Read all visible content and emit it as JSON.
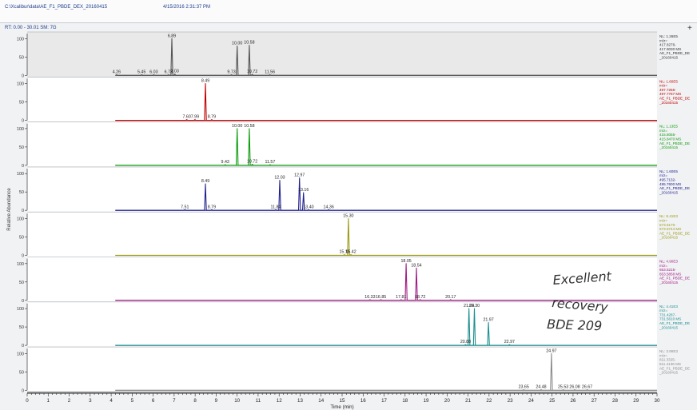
{
  "header": {
    "path": "C:\\Xcalibur\\data\\AE_F1_PBDE_DEX_20160415",
    "stamp": "4/15/2016 2:31:37 PM"
  },
  "rt_label": "RT: 0.00 - 30.01  SM: 7G",
  "plus_icon": "plus-icon",
  "annotation": [
    "Excellent",
    "recovery",
    "BDE 209"
  ],
  "chart_data": {
    "type": "line",
    "x_range": [
      0,
      30
    ],
    "x_ticks": [
      0,
      1,
      2,
      3,
      4,
      5,
      6,
      7,
      8,
      9,
      10,
      11,
      12,
      13,
      14,
      15,
      16,
      17,
      18,
      19,
      20,
      21,
      22,
      23,
      24,
      25,
      26,
      27,
      28,
      29,
      30
    ],
    "x_tick_labels": [
      "0",
      "1",
      "2",
      "3",
      "4",
      "5",
      "6",
      "7",
      "8",
      "9",
      "10",
      "11",
      "12",
      "13",
      "14",
      "15",
      "16",
      "17",
      "18",
      "19",
      "20",
      "21",
      "22",
      "23",
      "24",
      "25",
      "26",
      "27",
      "28",
      "29",
      "30"
    ],
    "xlabel": "Time (min)",
    "ylabel": "Relative Abundance",
    "y_ticks": [
      0,
      50,
      100
    ],
    "grid": false,
    "panels": [
      {
        "color": "#555555",
        "shaded": true,
        "x_start": 4.2,
        "peaks": [
          {
            "x": 4.26,
            "y": 2,
            "w": 0.05,
            "label": "4.26"
          },
          {
            "x": 5.45,
            "y": 2,
            "w": 0.05,
            "label": "5.45"
          },
          {
            "x": 6.03,
            "y": 2,
            "w": 0.05,
            "label": "6.03"
          },
          {
            "x": 6.73,
            "y": 2,
            "w": 0.05,
            "label": "6.73"
          },
          {
            "x": 6.89,
            "y": 100,
            "w": 0.045,
            "label": "6.89"
          },
          {
            "x": 7.03,
            "y": 4,
            "w": 0.04,
            "label": "7.03"
          },
          {
            "x": 9.73,
            "y": 2,
            "w": 0.05,
            "label": "9.73"
          },
          {
            "x": 10.0,
            "y": 80,
            "w": 0.045,
            "label": "10.00"
          },
          {
            "x": 10.58,
            "y": 82,
            "w": 0.045,
            "label": "10.58"
          },
          {
            "x": 10.72,
            "y": 3,
            "w": 0.05,
            "label": "10.72"
          },
          {
            "x": 11.56,
            "y": 2,
            "w": 0.05,
            "label": "11.56"
          }
        ],
        "side": [
          "NL: 1.26E5",
          "m/z=",
          "417.8276-",
          "417.9030  MS",
          "AE_F1_PBDE_DE",
          "_20160415"
        ]
      },
      {
        "color": "#c00000",
        "shaded": false,
        "x_start": 4.2,
        "peaks": [
          {
            "x": 7.6,
            "y": 2,
            "w": 0.05,
            "label": "7.60"
          },
          {
            "x": 7.99,
            "y": 2,
            "w": 0.05,
            "label": "7.99"
          },
          {
            "x": 8.49,
            "y": 100,
            "w": 0.045,
            "label": "8.49"
          },
          {
            "x": 8.79,
            "y": 2,
            "w": 0.05,
            "label": "8.79"
          }
        ],
        "side": [
          "NL: 1.60E5",
          "m/z=",
          "497.7256-",
          "497.7767  MS",
          "AE_F1_PBDE_DE",
          "_20160415"
        ]
      },
      {
        "color": "#0d9b0d",
        "shaded": false,
        "x_start": 4.2,
        "peaks": [
          {
            "x": 9.43,
            "y": 2,
            "w": 0.05,
            "label": "9.43"
          },
          {
            "x": 10.0,
            "y": 100,
            "w": 0.045,
            "label": "10.00"
          },
          {
            "x": 10.58,
            "y": 100,
            "w": 0.045,
            "label": "10.58"
          },
          {
            "x": 10.72,
            "y": 3,
            "w": 0.05,
            "label": "10.72"
          },
          {
            "x": 11.57,
            "y": 2,
            "w": 0.05,
            "label": "11.57"
          }
        ],
        "side": [
          "NL: 1.13E5",
          "m/z=",
          "415.8055-",
          "415.8470  MS",
          "AE_F1_PBDE_DE",
          "_20160415"
        ]
      },
      {
        "color": "#22228f",
        "shaded": false,
        "x_start": 4.2,
        "peaks": [
          {
            "x": 7.51,
            "y": 2,
            "w": 0.05,
            "label": "7.51"
          },
          {
            "x": 8.49,
            "y": 72,
            "w": 0.045,
            "label": "8.49"
          },
          {
            "x": 8.79,
            "y": 2,
            "w": 0.05,
            "label": "8.79"
          },
          {
            "x": 11.84,
            "y": 2,
            "w": 0.05,
            "label": "11.84"
          },
          {
            "x": 12.03,
            "y": 82,
            "w": 0.045,
            "label": "12.03"
          },
          {
            "x": 12.97,
            "y": 88,
            "w": 0.045,
            "label": "12.97"
          },
          {
            "x": 13.16,
            "y": 48,
            "w": 0.045,
            "label": "13.16"
          },
          {
            "x": 13.4,
            "y": 2,
            "w": 0.05,
            "label": "13.40"
          },
          {
            "x": 14.36,
            "y": 2,
            "w": 0.05,
            "label": "14.36"
          }
        ],
        "side": [
          "NL: 1.60E5",
          "m/z=",
          "495.7132-",
          "495.7600  MS",
          "AE_F1_PBDE_DE",
          "_20160415"
        ]
      },
      {
        "color": "#9a9a13",
        "shaded": false,
        "x_start": 4.2,
        "peaks": [
          {
            "x": 15.11,
            "y": 2,
            "w": 0.05,
            "label": "15.11"
          },
          {
            "x": 15.3,
            "y": 100,
            "w": 0.045,
            "label": "15.30"
          },
          {
            "x": 15.42,
            "y": 2,
            "w": 0.05,
            "label": "15.42"
          }
        ],
        "side": [
          "NL: 8.41E3",
          "m/z=",
          "573.6170-",
          "573.6744  MS",
          "AE_F1_PBDE_DE",
          "_20160415"
        ]
      },
      {
        "color": "#a01a84",
        "shaded": false,
        "x_start": 4.2,
        "peaks": [
          {
            "x": 16.33,
            "y": 2,
            "w": 0.05,
            "label": "16.33"
          },
          {
            "x": 16.85,
            "y": 2,
            "w": 0.05,
            "label": "16.85"
          },
          {
            "x": 17.81,
            "y": 2,
            "w": 0.05,
            "label": "17.81"
          },
          {
            "x": 18.05,
            "y": 100,
            "w": 0.045,
            "label": "18.05"
          },
          {
            "x": 18.54,
            "y": 88,
            "w": 0.045,
            "label": "18.54"
          },
          {
            "x": 18.72,
            "y": 2,
            "w": 0.05,
            "label": "18.72"
          },
          {
            "x": 20.17,
            "y": 2,
            "w": 0.05,
            "label": "20.17"
          }
        ],
        "side": [
          "NL: 4.90E3",
          "m/z=",
          "653.5215-",
          "653.5858  MS",
          "AE_F1_PBDE_DE",
          "_20160415"
        ]
      },
      {
        "color": "#1b8e8e",
        "shaded": false,
        "x_start": 4.2,
        "peaks": [
          {
            "x": 20.88,
            "y": 2,
            "w": 0.05,
            "label": "20.88"
          },
          {
            "x": 21.04,
            "y": 100,
            "w": 0.045,
            "label": "21.04"
          },
          {
            "x": 21.3,
            "y": 100,
            "w": 0.045,
            "label": "21.30"
          },
          {
            "x": 21.97,
            "y": 62,
            "w": 0.045,
            "label": "21.97"
          },
          {
            "x": 22.97,
            "y": 2,
            "w": 0.05,
            "label": "22.97"
          }
        ],
        "side": [
          "NL: 4.41E3",
          "m/z=",
          "731.4287-",
          "731.5610  MS",
          "AE_F1_PBDE_DE",
          "_20160415"
        ]
      },
      {
        "color": "#8c8c8c",
        "shaded": false,
        "x_start": 4.2,
        "peaks": [
          {
            "x": 23.65,
            "y": 2,
            "w": 0.05,
            "label": "23.65"
          },
          {
            "x": 24.48,
            "y": 2,
            "w": 0.05,
            "label": "24.48"
          },
          {
            "x": 24.97,
            "y": 100,
            "w": 0.045,
            "label": "24.97"
          },
          {
            "x": 25.53,
            "y": 2,
            "w": 0.05,
            "label": "25.53"
          },
          {
            "x": 26.08,
            "y": 2,
            "w": 0.05,
            "label": "26.08"
          },
          {
            "x": 26.67,
            "y": 2,
            "w": 0.05,
            "label": "26.67"
          }
        ],
        "side": [
          "NL: 3.86E3",
          "m/z=",
          "811.3325-",
          "811.4136  MS",
          "AE_F1_PBDE_DE",
          "_20160415"
        ]
      }
    ]
  }
}
